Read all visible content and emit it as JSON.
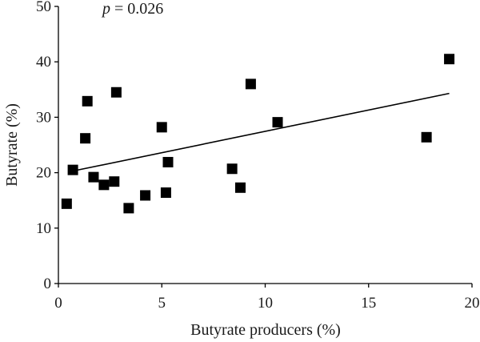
{
  "chart_data": {
    "type": "scatter",
    "title": "",
    "xlabel": "Butyrate producers (%)",
    "ylabel": "Butyrate (%)",
    "xlim": [
      0,
      20
    ],
    "ylim": [
      0,
      50
    ],
    "xticks": [
      0,
      5,
      10,
      15,
      20
    ],
    "yticks": [
      0,
      10,
      20,
      30,
      40,
      50
    ],
    "grid": false,
    "legend": "none",
    "annotation": {
      "symbol": "p",
      "text": " = 0.026"
    },
    "marker_color": "#000000",
    "series": [
      {
        "points": [
          {
            "x": 0.4,
            "y": 14.4
          },
          {
            "x": 0.7,
            "y": 20.5
          },
          {
            "x": 1.3,
            "y": 26.2
          },
          {
            "x": 1.4,
            "y": 32.9
          },
          {
            "x": 1.7,
            "y": 19.2
          },
          {
            "x": 2.2,
            "y": 17.8
          },
          {
            "x": 2.7,
            "y": 18.4
          },
          {
            "x": 2.8,
            "y": 34.5
          },
          {
            "x": 3.4,
            "y": 13.6
          },
          {
            "x": 4.2,
            "y": 15.9
          },
          {
            "x": 5.0,
            "y": 28.2
          },
          {
            "x": 5.2,
            "y": 16.4
          },
          {
            "x": 5.3,
            "y": 21.9
          },
          {
            "x": 8.4,
            "y": 20.7
          },
          {
            "x": 8.8,
            "y": 17.3
          },
          {
            "x": 9.3,
            "y": 36.0
          },
          {
            "x": 10.6,
            "y": 29.1
          },
          {
            "x": 17.8,
            "y": 26.4
          },
          {
            "x": 18.9,
            "y": 40.5
          }
        ]
      }
    ],
    "trendline": {
      "x": [
        0.7,
        18.9
      ],
      "y": [
        20.3,
        34.3
      ]
    }
  }
}
